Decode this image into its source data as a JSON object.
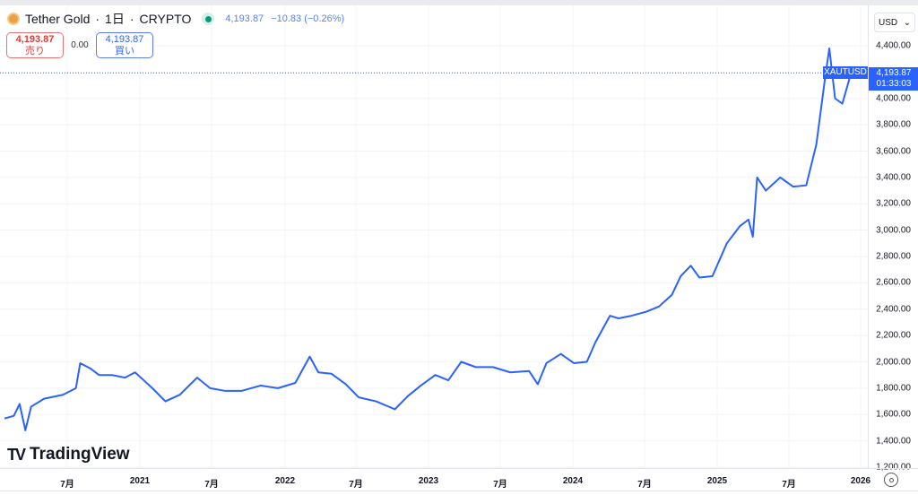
{
  "header": {
    "title": "Tether Gold",
    "interval": "1日",
    "exchange": "CRYPTO",
    "sep": "·",
    "price": "4,193.87",
    "change": "−10.83 (−0.26%)"
  },
  "trade": {
    "sell_price": "4,193.87",
    "sell_label": "売り",
    "spread": "0.00",
    "buy_price": "4,193.87",
    "buy_label": "買い"
  },
  "price_axis": {
    "currency": "USD",
    "ticks": [
      "4,400.00",
      "4,000.00",
      "3,800.00",
      "3,600.00",
      "3,400.00",
      "3,200.00",
      "3,000.00",
      "2,800.00",
      "2,600.00",
      "2,400.00",
      "2,200.00",
      "2,000.00",
      "1,800.00",
      "1,600.00",
      "1,400.00",
      "1,200.00"
    ],
    "current_price": "4,193.87",
    "countdown": "01:33:03",
    "symbol": "XAUTUSD"
  },
  "time_axis": {
    "labels": [
      "7月",
      "2021",
      "7月",
      "2022",
      "7月",
      "2023",
      "7月",
      "2024",
      "7月",
      "2025",
      "7月",
      "2026"
    ]
  },
  "logo": "TradingView",
  "colors": {
    "line": "#2962ff"
  },
  "chart_data": {
    "type": "line",
    "series": [
      {
        "name": "XAUTUSD",
        "x": [
          2020.065,
          2020.13,
          2020.17,
          2020.21,
          2020.25,
          2020.34,
          2020.47,
          2020.56,
          2020.59,
          2020.66,
          2020.72,
          2020.81,
          2020.9,
          2020.97,
          2021.03,
          2021.09,
          2021.18,
          2021.28,
          2021.4,
          2021.49,
          2021.59,
          2021.71,
          2021.84,
          2021.96,
          2022.08,
          2022.18,
          2022.24,
          2022.33,
          2022.43,
          2022.52,
          2022.64,
          2022.77,
          2022.86,
          2022.95,
          2023.05,
          2023.14,
          2023.23,
          2023.33,
          2023.45,
          2023.57,
          2023.7,
          2023.76,
          2023.82,
          2023.92,
          2024.01,
          2024.1,
          2024.16,
          2024.26,
          2024.32,
          2024.41,
          2024.51,
          2024.6,
          2024.69,
          2024.75,
          2024.82,
          2024.88,
          2024.97,
          2025.07,
          2025.16,
          2025.22,
          2025.25,
          2025.28,
          2025.34,
          2025.44,
          2025.53,
          2025.62,
          2025.69,
          2025.75,
          2025.78,
          2025.82,
          2025.87,
          2025.93
        ],
        "y": [
          1570,
          1590,
          1680,
          1480,
          1660,
          1720,
          1750,
          1800,
          1990,
          1950,
          1900,
          1900,
          1880,
          1920,
          1860,
          1800,
          1700,
          1750,
          1880,
          1800,
          1780,
          1780,
          1820,
          1800,
          1840,
          2040,
          1920,
          1910,
          1830,
          1730,
          1700,
          1640,
          1740,
          1820,
          1900,
          1860,
          2000,
          1960,
          1960,
          1920,
          1930,
          1830,
          1990,
          2060,
          1990,
          2000,
          2150,
          2350,
          2330,
          2350,
          2380,
          2420,
          2510,
          2650,
          2730,
          2640,
          2650,
          2900,
          3030,
          3080,
          2950,
          3400,
          3300,
          3400,
          3330,
          3340,
          3650,
          4150,
          4380,
          4000,
          3960,
          4190
        ]
      }
    ],
    "ylim": [
      1200,
      4400
    ],
    "xlim": [
      2020.03,
      2026.05
    ]
  }
}
